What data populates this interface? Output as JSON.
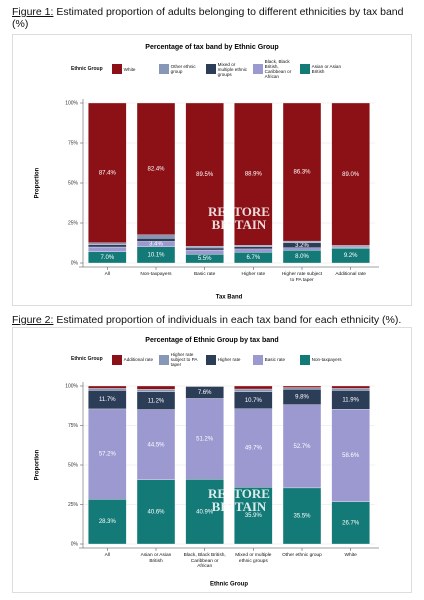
{
  "captions": [
    {
      "label": "Figure 1:",
      "text": "Estimated proportion of adults belonging to different ethnicities by tax band (%)"
    },
    {
      "label": "Figure 2:",
      "text": "Estimated proportion of individuals in each tax band for each ethnicity (%)."
    }
  ],
  "chart_data": [
    {
      "type": "stacked_bar",
      "title": "Percentage of tax band by Ethnic Group",
      "legend_title": "Ethnic Group",
      "x_label": "Tax Band",
      "y_label": "Proportion",
      "watermark": [
        "RESTORE",
        "BRITAIN"
      ],
      "grid": true,
      "categories": [
        "All",
        "Non-taxpayers",
        "Basic rate",
        "Higher rate",
        "Higher rate subject to PA taper",
        "Additional rate"
      ],
      "ylim": [
        0,
        100
      ],
      "yticks": [
        {
          "value": 0,
          "label": "0%"
        },
        {
          "value": 25,
          "label": "25%"
        },
        {
          "value": 50,
          "label": "50%"
        },
        {
          "value": 75,
          "label": "75%"
        },
        {
          "value": 100,
          "label": "100%"
        }
      ],
      "series": [
        {
          "name": "White",
          "color": "#8c1116",
          "values": [
            87.4,
            82.4,
            89.5,
            88.9,
            86.3,
            89.0
          ],
          "value_labels": [
            "87.4%",
            "82.4%",
            "89.5%",
            "88.9%",
            "86.3%",
            "89.0%"
          ]
        },
        {
          "name": "Other ethnic group",
          "color": "#8797b8",
          "values": [
            1.1,
            2.2,
            1.1,
            1.0,
            1.0,
            0.5
          ],
          "value_labels": [
            null,
            null,
            null,
            null,
            null,
            null
          ]
        },
        {
          "name": "Mixed or multiple ethnic groups",
          "color": "#2c3d58",
          "values": [
            1.5,
            1.9,
            1.3,
            1.3,
            3.2,
            0.5
          ],
          "value_labels": [
            null,
            null,
            null,
            null,
            "3.2%",
            null
          ]
        },
        {
          "name": "Black, Black British, Caribbean or African",
          "color": "#9c99d0",
          "values": [
            3.0,
            3.4,
            2.6,
            2.1,
            1.5,
            0.8
          ],
          "value_labels": [
            null,
            "3.4%",
            null,
            null,
            null,
            null
          ]
        },
        {
          "name": "Asian or Asian British",
          "color": "#137a77",
          "values": [
            7.0,
            10.1,
            5.5,
            6.7,
            8.0,
            9.2
          ],
          "value_labels": [
            "7.0%",
            "10.1%",
            "5.5%",
            "6.7%",
            "8.0%",
            "9.2%"
          ]
        }
      ]
    },
    {
      "type": "stacked_bar",
      "title": "Percentage of Ethnic Group by tax band",
      "legend_title": "Ethnic Group",
      "x_label": "Ethnic Group",
      "y_label": "Proportion",
      "watermark": [
        "RESTORE",
        "BRITAIN"
      ],
      "grid": true,
      "categories": [
        "All",
        "Asian or Asian British",
        "Black, Black British, Caribbean or African",
        "Mixed or multiple ethnic groups",
        "Other ethnic group",
        "White"
      ],
      "ylim": [
        0,
        100
      ],
      "yticks": [
        {
          "value": 0,
          "label": "0%"
        },
        {
          "value": 25,
          "label": "25%"
        },
        {
          "value": 50,
          "label": "50%"
        },
        {
          "value": 75,
          "label": "75%"
        },
        {
          "value": 100,
          "label": "100%"
        }
      ],
      "series": [
        {
          "name": "Additional rate",
          "color": "#8c1116",
          "values": [
            1.5,
            2.0,
            0.1,
            1.9,
            1.0,
            1.5
          ],
          "value_labels": [
            null,
            null,
            null,
            null,
            null,
            null
          ]
        },
        {
          "name": "Higher rate subject to PA taper",
          "color": "#8797b8",
          "values": [
            1.3,
            1.7,
            0.2,
            1.8,
            1.0,
            1.3
          ],
          "value_labels": [
            null,
            null,
            null,
            null,
            null,
            null
          ]
        },
        {
          "name": "Higher rate",
          "color": "#2c3d58",
          "values": [
            11.7,
            11.2,
            7.6,
            10.7,
            9.8,
            11.9
          ],
          "value_labels": [
            "11.7%",
            "11.2%",
            "7.6%",
            "10.7%",
            "9.8%",
            "11.9%"
          ]
        },
        {
          "name": "Basic rate",
          "color": "#9c99d0",
          "values": [
            57.2,
            44.5,
            51.2,
            49.7,
            52.7,
            58.6
          ],
          "value_labels": [
            "57.2%",
            "44.5%",
            "51.2%",
            "49.7%",
            "52.7%",
            "58.6%"
          ]
        },
        {
          "name": "Non-taxpayers",
          "color": "#137a77",
          "values": [
            28.3,
            40.6,
            40.9,
            35.9,
            35.5,
            26.7
          ],
          "value_labels": [
            "28.3%",
            "40.6%",
            "40.9%",
            "35.9%",
            "35.5%",
            "26.7%"
          ]
        }
      ]
    }
  ]
}
